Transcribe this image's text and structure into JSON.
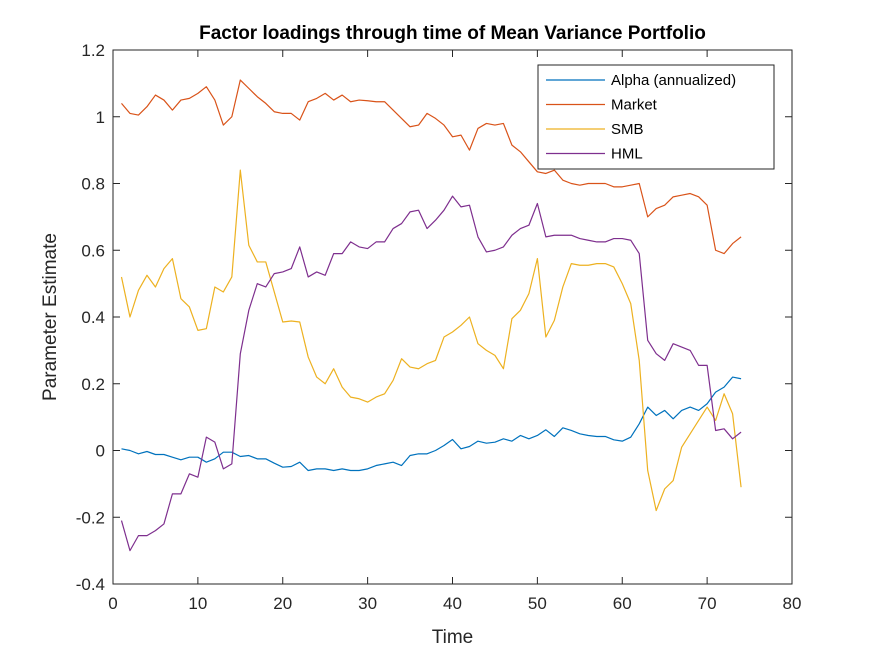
{
  "chart_data": {
    "type": "line",
    "title": "Factor loadings through time of Mean Variance Portfolio",
    "xlabel": "Time",
    "ylabel": "Parameter Estimate",
    "xlim": [
      0,
      80
    ],
    "ylim": [
      -0.4,
      1.2
    ],
    "xticks": [
      0,
      10,
      20,
      30,
      40,
      50,
      60,
      70,
      80
    ],
    "yticks": [
      -0.4,
      -0.2,
      0,
      0.2,
      0.4,
      0.6,
      0.8,
      1,
      1.2
    ],
    "xtick_labels": [
      "0",
      "10",
      "20",
      "30",
      "40",
      "50",
      "60",
      "70",
      "80"
    ],
    "ytick_labels": [
      "-0.4",
      "-0.2",
      "0",
      "0.2",
      "0.4",
      "0.6",
      "0.8",
      "1",
      "1.2"
    ],
    "grid": false,
    "legend_position": "top-right",
    "x": [
      1,
      2,
      3,
      4,
      5,
      6,
      7,
      8,
      9,
      10,
      11,
      12,
      13,
      14,
      15,
      16,
      17,
      18,
      19,
      20,
      21,
      22,
      23,
      24,
      25,
      26,
      27,
      28,
      29,
      30,
      31,
      32,
      33,
      34,
      35,
      36,
      37,
      38,
      39,
      40,
      41,
      42,
      43,
      44,
      45,
      46,
      47,
      48,
      49,
      50,
      51,
      52,
      53,
      54,
      55,
      56,
      57,
      58,
      59,
      60,
      61,
      62,
      63,
      64,
      65,
      66,
      67,
      68,
      69,
      70,
      71,
      72,
      73,
      74
    ],
    "series": [
      {
        "name": "Alpha (annualized)",
        "color": "#0072BD",
        "values": [
          0.005,
          0.0,
          -0.01,
          -0.003,
          -0.012,
          -0.012,
          -0.02,
          -0.028,
          -0.02,
          -0.02,
          -0.035,
          -0.025,
          -0.005,
          -0.005,
          -0.018,
          -0.015,
          -0.025,
          -0.025,
          -0.038,
          -0.05,
          -0.048,
          -0.035,
          -0.06,
          -0.055,
          -0.055,
          -0.06,
          -0.055,
          -0.06,
          -0.06,
          -0.055,
          -0.045,
          -0.04,
          -0.035,
          -0.045,
          -0.015,
          -0.01,
          -0.01,
          0.0,
          0.015,
          0.033,
          0.005,
          0.012,
          0.028,
          0.022,
          0.025,
          0.035,
          0.028,
          0.045,
          0.035,
          0.045,
          0.062,
          0.042,
          0.068,
          0.06,
          0.05,
          0.045,
          0.042,
          0.042,
          0.032,
          0.028,
          0.04,
          0.08,
          0.13,
          0.105,
          0.12,
          0.095,
          0.12,
          0.13,
          0.12,
          0.14,
          0.175,
          0.19,
          0.22,
          0.215
        ]
      },
      {
        "name": "Market",
        "color": "#D95319",
        "values": [
          1.04,
          1.01,
          1.005,
          1.03,
          1.065,
          1.05,
          1.02,
          1.05,
          1.055,
          1.07,
          1.09,
          1.05,
          0.975,
          1.0,
          1.11,
          1.085,
          1.06,
          1.04,
          1.015,
          1.01,
          1.01,
          0.99,
          1.045,
          1.055,
          1.07,
          1.05,
          1.065,
          1.045,
          1.05,
          1.048,
          1.045,
          1.045,
          1.02,
          0.995,
          0.97,
          0.975,
          1.01,
          0.995,
          0.975,
          0.94,
          0.945,
          0.9,
          0.965,
          0.98,
          0.975,
          0.98,
          0.915,
          0.895,
          0.865,
          0.835,
          0.83,
          0.84,
          0.81,
          0.8,
          0.795,
          0.8,
          0.8,
          0.8,
          0.79,
          0.79,
          0.795,
          0.8,
          0.7,
          0.725,
          0.735,
          0.76,
          0.765,
          0.77,
          0.76,
          0.735,
          0.6,
          0.59,
          0.62,
          0.64
        ]
      },
      {
        "name": "SMB",
        "color": "#EDB120",
        "values": [
          0.52,
          0.4,
          0.48,
          0.525,
          0.49,
          0.545,
          0.575,
          0.455,
          0.43,
          0.36,
          0.365,
          0.49,
          0.475,
          0.52,
          0.84,
          0.615,
          0.565,
          0.565,
          0.475,
          0.385,
          0.388,
          0.385,
          0.28,
          0.22,
          0.2,
          0.245,
          0.19,
          0.16,
          0.155,
          0.145,
          0.16,
          0.17,
          0.21,
          0.275,
          0.25,
          0.245,
          0.26,
          0.27,
          0.34,
          0.355,
          0.375,
          0.4,
          0.32,
          0.3,
          0.285,
          0.245,
          0.395,
          0.42,
          0.47,
          0.575,
          0.34,
          0.39,
          0.49,
          0.56,
          0.555,
          0.555,
          0.56,
          0.56,
          0.55,
          0.5,
          0.44,
          0.27,
          -0.06,
          -0.18,
          -0.115,
          -0.09,
          0.01,
          0.05,
          0.09,
          0.13,
          0.09,
          0.17,
          0.11,
          -0.11
        ]
      },
      {
        "name": "HML",
        "color": "#7E2F8E",
        "values": [
          -0.21,
          -0.3,
          -0.255,
          -0.255,
          -0.24,
          -0.22,
          -0.13,
          -0.13,
          -0.07,
          -0.08,
          0.04,
          0.025,
          -0.055,
          -0.04,
          0.29,
          0.42,
          0.5,
          0.49,
          0.53,
          0.535,
          0.545,
          0.61,
          0.52,
          0.535,
          0.525,
          0.59,
          0.59,
          0.625,
          0.61,
          0.605,
          0.625,
          0.625,
          0.665,
          0.68,
          0.715,
          0.72,
          0.665,
          0.69,
          0.72,
          0.762,
          0.73,
          0.735,
          0.64,
          0.595,
          0.6,
          0.61,
          0.645,
          0.665,
          0.675,
          0.74,
          0.64,
          0.645,
          0.645,
          0.645,
          0.635,
          0.63,
          0.625,
          0.625,
          0.635,
          0.635,
          0.63,
          0.59,
          0.33,
          0.29,
          0.27,
          0.32,
          0.31,
          0.3,
          0.255,
          0.255,
          0.06,
          0.065,
          0.035,
          0.055
        ]
      }
    ]
  }
}
